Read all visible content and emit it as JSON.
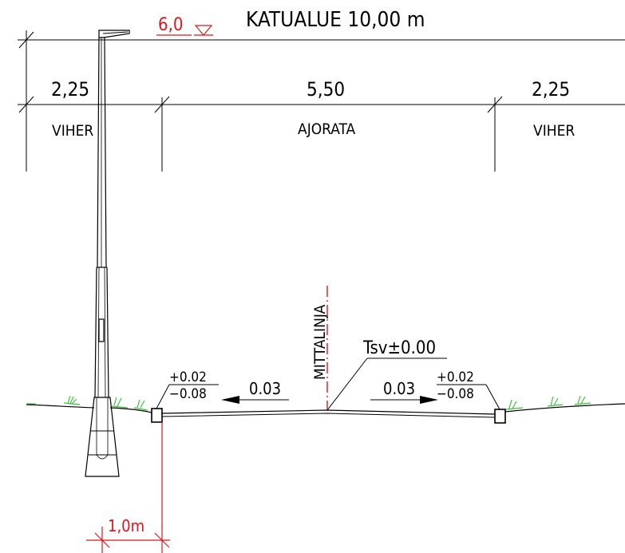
{
  "title": "KATUALUE 10,00 m",
  "elevation": "6,0",
  "dimensions": {
    "left": "2,25",
    "center": "5,50",
    "right": "2,25"
  },
  "zones": {
    "left": "VIHER",
    "center": "AJORATA",
    "right": "VIHER"
  },
  "centerline_label": "MITTALINJA",
  "tsv_label": "Tsv±0.00",
  "slope_left": "0.03",
  "slope_right": "0.03",
  "tolerance_left": {
    "plus": "+0.02",
    "minus": "−0.08"
  },
  "tolerance_right": {
    "plus": "+0.02",
    "minus": "−0.08"
  },
  "offset_label": "1,0m",
  "colors": {
    "lines": "#000000",
    "annotation_red": "#e0161b",
    "grass": "#3fbf3f"
  }
}
